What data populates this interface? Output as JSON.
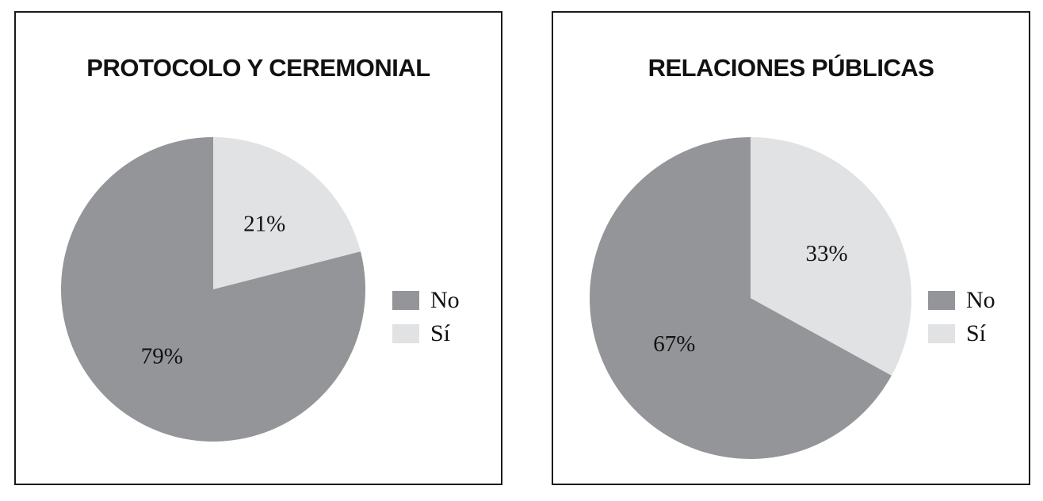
{
  "colors": {
    "no": "#939598",
    "si": "#e1e2e3",
    "border": "#1a1a1a"
  },
  "chart_data": [
    {
      "type": "pie",
      "title": "PROTOCOLO Y CEREMONIAL",
      "categories": [
        "No",
        "Sí"
      ],
      "values": [
        79,
        21
      ],
      "labels": [
        "79%",
        "21%"
      ],
      "colors": [
        "#939598",
        "#e1e2e3"
      ],
      "legend": {
        "entries": [
          "No",
          "Sí"
        ],
        "position": "right"
      }
    },
    {
      "type": "pie",
      "title": "RELACIONES PÚBLICAS",
      "categories": [
        "No",
        "Sí"
      ],
      "values": [
        67,
        33
      ],
      "labels": [
        "67%",
        "33%"
      ],
      "colors": [
        "#939598",
        "#e1e2e3"
      ],
      "legend": {
        "entries": [
          "No",
          "Sí"
        ],
        "position": "right"
      }
    }
  ]
}
